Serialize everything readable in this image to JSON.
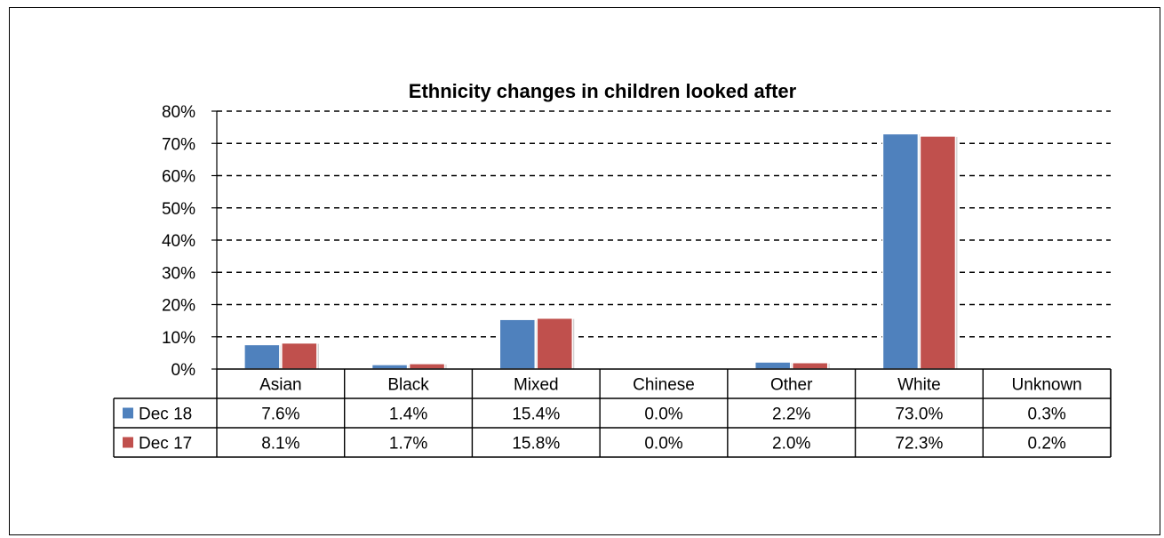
{
  "chart_data": {
    "type": "bar",
    "title": "Ethnicity changes in children looked after",
    "categories": [
      "Asian",
      "Black",
      "Mixed",
      "Chinese",
      "Other",
      "White",
      "Unknown"
    ],
    "series": [
      {
        "name": "Dec 18",
        "color": "#4f81bd",
        "values": [
          7.6,
          1.4,
          15.4,
          0.0,
          2.2,
          73.0,
          0.3
        ],
        "labels": [
          "7.6%",
          "1.4%",
          "15.4%",
          "0.0%",
          "2.2%",
          "73.0%",
          "0.3%"
        ]
      },
      {
        "name": "Dec 17",
        "color": "#c0504d",
        "values": [
          8.1,
          1.7,
          15.8,
          0.0,
          2.0,
          72.3,
          0.2
        ],
        "labels": [
          "8.1%",
          "1.7%",
          "15.8%",
          "0.0%",
          "2.0%",
          "72.3%",
          "0.2%"
        ]
      }
    ],
    "ylim": [
      0,
      80
    ],
    "yticks": [
      "0%",
      "10%",
      "20%",
      "30%",
      "40%",
      "50%",
      "60%",
      "70%",
      "80%"
    ],
    "grid": "dashed horizontal",
    "legend": "data table"
  }
}
